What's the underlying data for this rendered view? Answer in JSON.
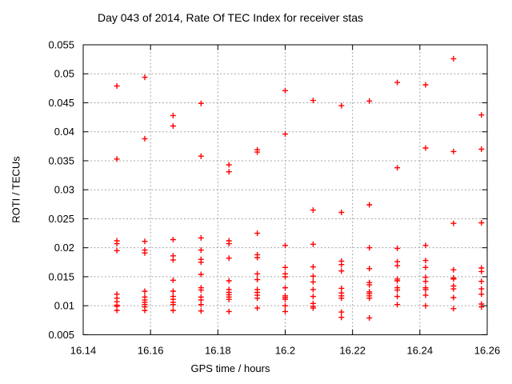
{
  "title": "Day 043 of 2014, Rate Of TEC Index for receiver stas",
  "colors": {
    "marker": "#ff0000",
    "grid": "#a6a6a6",
    "border": "#000000",
    "text": "#000000",
    "background": "#ffffff"
  },
  "chart_data": {
    "type": "scatter",
    "title": "Day 043 of 2014, Rate Of TEC Index for receiver stas",
    "xlabel": "GPS time / hours",
    "ylabel": "ROTI / TECUs",
    "xlim": [
      16.14,
      16.26
    ],
    "ylim": [
      0.005,
      0.055
    ],
    "xticks": [
      16.14,
      16.16,
      16.18,
      16.2,
      16.22,
      16.24,
      16.26
    ],
    "xtick_labels": [
      "16.14",
      "16.16",
      "16.18",
      "16.2",
      "16.22",
      "16.24",
      "16.26"
    ],
    "yticks": [
      0.005,
      0.01,
      0.015,
      0.02,
      0.025,
      0.03,
      0.035,
      0.04,
      0.045,
      0.05,
      0.055
    ],
    "ytick_labels": [
      "0.005",
      "0.01",
      "0.015",
      "0.02",
      "0.025",
      "0.03",
      "0.035",
      "0.04",
      "0.045",
      "0.05",
      "0.055"
    ],
    "grid": true,
    "legend": "none",
    "marker": "plus",
    "series": [
      {
        "name": "ROTI",
        "points": [
          [
            16.15,
            0.0479
          ],
          [
            16.15,
            0.0353
          ],
          [
            16.15,
            0.0212
          ],
          [
            16.15,
            0.0207
          ],
          [
            16.15,
            0.0195
          ],
          [
            16.15,
            0.012
          ],
          [
            16.15,
            0.0113
          ],
          [
            16.15,
            0.0107
          ],
          [
            16.15,
            0.0101
          ],
          [
            16.15,
            0.0099
          ],
          [
            16.15,
            0.0092
          ],
          [
            16.1583,
            0.0494
          ],
          [
            16.1583,
            0.0388
          ],
          [
            16.1583,
            0.0211
          ],
          [
            16.1583,
            0.0196
          ],
          [
            16.1583,
            0.0191
          ],
          [
            16.1583,
            0.0125
          ],
          [
            16.1583,
            0.0115
          ],
          [
            16.1583,
            0.011
          ],
          [
            16.1583,
            0.0106
          ],
          [
            16.1583,
            0.0102
          ],
          [
            16.1583,
            0.0098
          ],
          [
            16.1583,
            0.0092
          ],
          [
            16.1667,
            0.0428
          ],
          [
            16.1667,
            0.041
          ],
          [
            16.1667,
            0.0214
          ],
          [
            16.1667,
            0.0186
          ],
          [
            16.1667,
            0.0179
          ],
          [
            16.1667,
            0.0144
          ],
          [
            16.1667,
            0.0125
          ],
          [
            16.1667,
            0.0116
          ],
          [
            16.1667,
            0.0111
          ],
          [
            16.1667,
            0.0106
          ],
          [
            16.1667,
            0.0102
          ],
          [
            16.1667,
            0.0092
          ],
          [
            16.175,
            0.0449
          ],
          [
            16.175,
            0.0358
          ],
          [
            16.175,
            0.0217
          ],
          [
            16.175,
            0.0196
          ],
          [
            16.175,
            0.018
          ],
          [
            16.175,
            0.0175
          ],
          [
            16.175,
            0.0154
          ],
          [
            16.175,
            0.0131
          ],
          [
            16.175,
            0.0127
          ],
          [
            16.175,
            0.0115
          ],
          [
            16.175,
            0.011
          ],
          [
            16.175,
            0.0102
          ],
          [
            16.175,
            0.0091
          ],
          [
            16.1833,
            0.0343
          ],
          [
            16.1833,
            0.0331
          ],
          [
            16.1833,
            0.0212
          ],
          [
            16.1833,
            0.0207
          ],
          [
            16.1833,
            0.0182
          ],
          [
            16.1833,
            0.0143
          ],
          [
            16.1833,
            0.0128
          ],
          [
            16.1833,
            0.0123
          ],
          [
            16.1833,
            0.0119
          ],
          [
            16.1833,
            0.0115
          ],
          [
            16.1833,
            0.0111
          ],
          [
            16.1833,
            0.009
          ],
          [
            16.1917,
            0.0369
          ],
          [
            16.1917,
            0.0365
          ],
          [
            16.1917,
            0.0225
          ],
          [
            16.1917,
            0.0188
          ],
          [
            16.1917,
            0.0183
          ],
          [
            16.1917,
            0.0155
          ],
          [
            16.1917,
            0.0145
          ],
          [
            16.1917,
            0.0128
          ],
          [
            16.1917,
            0.0123
          ],
          [
            16.1917,
            0.0118
          ],
          [
            16.1917,
            0.0113
          ],
          [
            16.1917,
            0.0096
          ],
          [
            16.2,
            0.0471
          ],
          [
            16.2,
            0.0396
          ],
          [
            16.2,
            0.0204
          ],
          [
            16.2,
            0.0166
          ],
          [
            16.2,
            0.0155
          ],
          [
            16.2,
            0.015
          ],
          [
            16.2,
            0.0131
          ],
          [
            16.2,
            0.0117
          ],
          [
            16.2,
            0.0114
          ],
          [
            16.2,
            0.0111
          ],
          [
            16.2,
            0.01
          ],
          [
            16.2,
            0.009
          ],
          [
            16.2083,
            0.0454
          ],
          [
            16.2083,
            0.0265
          ],
          [
            16.2083,
            0.0206
          ],
          [
            16.2083,
            0.0167
          ],
          [
            16.2083,
            0.0151
          ],
          [
            16.2083,
            0.0141
          ],
          [
            16.2083,
            0.0128
          ],
          [
            16.2083,
            0.0116
          ],
          [
            16.2083,
            0.0104
          ],
          [
            16.2083,
            0.0099
          ],
          [
            16.2083,
            0.0096
          ],
          [
            16.2167,
            0.0445
          ],
          [
            16.2167,
            0.0261
          ],
          [
            16.2167,
            0.0177
          ],
          [
            16.2167,
            0.0171
          ],
          [
            16.2167,
            0.016
          ],
          [
            16.2167,
            0.013
          ],
          [
            16.2167,
            0.0122
          ],
          [
            16.2167,
            0.0117
          ],
          [
            16.2167,
            0.0113
          ],
          [
            16.2167,
            0.0089
          ],
          [
            16.2167,
            0.008
          ],
          [
            16.225,
            0.0453
          ],
          [
            16.225,
            0.0274
          ],
          [
            16.225,
            0.02
          ],
          [
            16.225,
            0.0164
          ],
          [
            16.225,
            0.014
          ],
          [
            16.225,
            0.0136
          ],
          [
            16.225,
            0.0124
          ],
          [
            16.225,
            0.0121
          ],
          [
            16.225,
            0.0117
          ],
          [
            16.225,
            0.0113
          ],
          [
            16.225,
            0.0079
          ],
          [
            16.2333,
            0.0485
          ],
          [
            16.2333,
            0.0338
          ],
          [
            16.2333,
            0.0199
          ],
          [
            16.2333,
            0.0176
          ],
          [
            16.2333,
            0.0169
          ],
          [
            16.2333,
            0.0146
          ],
          [
            16.2333,
            0.0143
          ],
          [
            16.2333,
            0.0131
          ],
          [
            16.2333,
            0.0127
          ],
          [
            16.2333,
            0.0116
          ],
          [
            16.2333,
            0.0102
          ],
          [
            16.2417,
            0.0481
          ],
          [
            16.2417,
            0.0372
          ],
          [
            16.2417,
            0.0204
          ],
          [
            16.2417,
            0.0178
          ],
          [
            16.2417,
            0.0166
          ],
          [
            16.2417,
            0.0149
          ],
          [
            16.2417,
            0.0142
          ],
          [
            16.2417,
            0.0131
          ],
          [
            16.2417,
            0.0128
          ],
          [
            16.2417,
            0.0118
          ],
          [
            16.2417,
            0.01
          ],
          [
            16.25,
            0.0526
          ],
          [
            16.25,
            0.0366
          ],
          [
            16.25,
            0.0242
          ],
          [
            16.25,
            0.0162
          ],
          [
            16.25,
            0.0148
          ],
          [
            16.25,
            0.0146
          ],
          [
            16.25,
            0.0134
          ],
          [
            16.25,
            0.0129
          ],
          [
            16.25,
            0.0114
          ],
          [
            16.25,
            0.0095
          ],
          [
            16.2583,
            0.0429
          ],
          [
            16.2583,
            0.037
          ],
          [
            16.2583,
            0.0243
          ],
          [
            16.2583,
            0.0165
          ],
          [
            16.2583,
            0.0159
          ],
          [
            16.2583,
            0.0142
          ],
          [
            16.2583,
            0.0129
          ],
          [
            16.2583,
            0.012
          ],
          [
            16.2583,
            0.0103
          ],
          [
            16.2583,
            0.0098
          ]
        ]
      }
    ]
  }
}
